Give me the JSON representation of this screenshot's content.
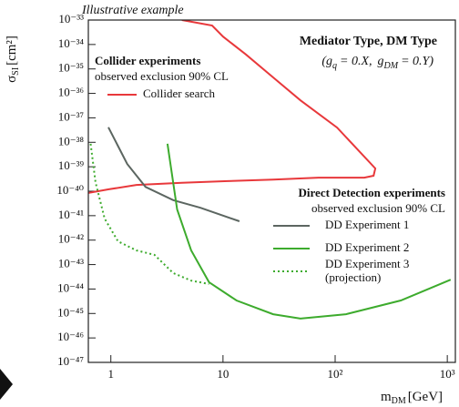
{
  "chart_data": {
    "type": "line",
    "title": "Illustrative example",
    "xscale": "log",
    "yscale": "log",
    "xlim": [
      0.63,
      1180
    ],
    "ylim": [
      1e-47,
      1e-33
    ],
    "xticks": [
      1,
      10,
      {
        "value": 100,
        "label": "10²"
      },
      {
        "value": 1000,
        "label": "10³"
      }
    ],
    "yticks": [
      {
        "value": 1e-33,
        "label": "10⁻³³"
      },
      {
        "value": 1e-34,
        "label": "10⁻³⁴"
      },
      {
        "value": 1e-35,
        "label": "10⁻³⁵"
      },
      {
        "value": 1e-36,
        "label": "10⁻³⁶"
      },
      {
        "value": 1e-37,
        "label": "10⁻³⁷"
      },
      {
        "value": 1e-38,
        "label": "10⁻³⁸"
      },
      {
        "value": 1e-39,
        "label": "10⁻³⁹"
      },
      {
        "value": 1e-40,
        "label": "10⁻⁴⁰"
      },
      {
        "value": 1e-41,
        "label": "10⁻⁴¹"
      },
      {
        "value": 1e-42,
        "label": "10⁻⁴²"
      },
      {
        "value": 1e-43,
        "label": "10⁻⁴³"
      },
      {
        "value": 1e-44,
        "label": "10⁻⁴⁴"
      },
      {
        "value": 1e-45,
        "label": "10⁻⁴⁵"
      },
      {
        "value": 1e-46,
        "label": "10⁻⁴⁶"
      },
      {
        "value": 1e-47,
        "label": "10⁻⁴⁷"
      }
    ],
    "x_label": {
      "symbol": "m",
      "sub": "DM",
      "unit": "[GeV]"
    },
    "y_label": {
      "symbol": "σ",
      "sub": "SI",
      "unit": "[cm²]"
    },
    "model": {
      "title": "Mediator Type, DM Type",
      "couplings": [
        {
          "symbol": "(g",
          "sub": "q",
          "value": "= 0.X,"
        },
        {
          "symbol": "g",
          "sub": "DM",
          "value": "= 0.Y)"
        }
      ]
    },
    "legend_groups": [
      {
        "title": "Collider experiments",
        "subtitle": "observed exclusion 90% CL"
      },
      {
        "title": "Direct Detection experiments",
        "subtitle": "observed exclusion 90% CL"
      }
    ],
    "series": [
      {
        "name": "Collider search",
        "group": 0,
        "color": "#e8383b",
        "dashed": false,
        "x": [
          4.3,
          8,
          10,
          16,
          28,
          49,
          104,
          228,
          220,
          182,
          71,
          28,
          11,
          4.3,
          1.69,
          0.96,
          0.63
        ],
        "values": [
          1e-33,
          6e-34,
          2.1e-34,
          3.9e-35,
          4.5e-36,
          5.2e-37,
          4e-38,
          8.5e-40,
          4.3e-40,
          3.6e-40,
          3.6e-40,
          3e-40,
          2.6e-40,
          2.2e-40,
          1.8e-40,
          1.2e-40,
          8.5e-41
        ]
      },
      {
        "name": "DD Experiment 1",
        "group": 1,
        "color": "#5c6661",
        "dashed": false,
        "x": [
          0.95,
          1.4,
          2.04,
          3.6,
          6.3,
          14
        ],
        "values": [
          4.1e-38,
          1.3e-39,
          1.5e-40,
          4.3e-41,
          2.1e-41,
          5.9e-42
        ]
      },
      {
        "name": "DD Experiment 2",
        "group": 1,
        "color": "#3dab2d",
        "dashed": false,
        "x": [
          3.2,
          3.9,
          5.2,
          7.5,
          13.2,
          28,
          49,
          125,
          385,
          1070
        ],
        "values": [
          8.7e-39,
          1.8e-41,
          3.8e-43,
          1.9e-44,
          3.4e-45,
          9.3e-46,
          6.2e-46,
          9.3e-46,
          3.4e-45,
          2.4e-44
        ]
      },
      {
        "name": "DD Experiment 3",
        "note": "(projection)",
        "group": 1,
        "color": "#3dab2d",
        "dashed": true,
        "x": [
          0.66,
          0.73,
          0.88,
          1.16,
          1.69,
          2.45,
          3.6,
          5.2,
          7.5
        ],
        "values": [
          8.7e-39,
          2.3e-40,
          7.6e-42,
          8.9e-43,
          3.8e-43,
          2.5e-43,
          4.5e-44,
          2.2e-44,
          1.6e-44
        ]
      }
    ]
  }
}
